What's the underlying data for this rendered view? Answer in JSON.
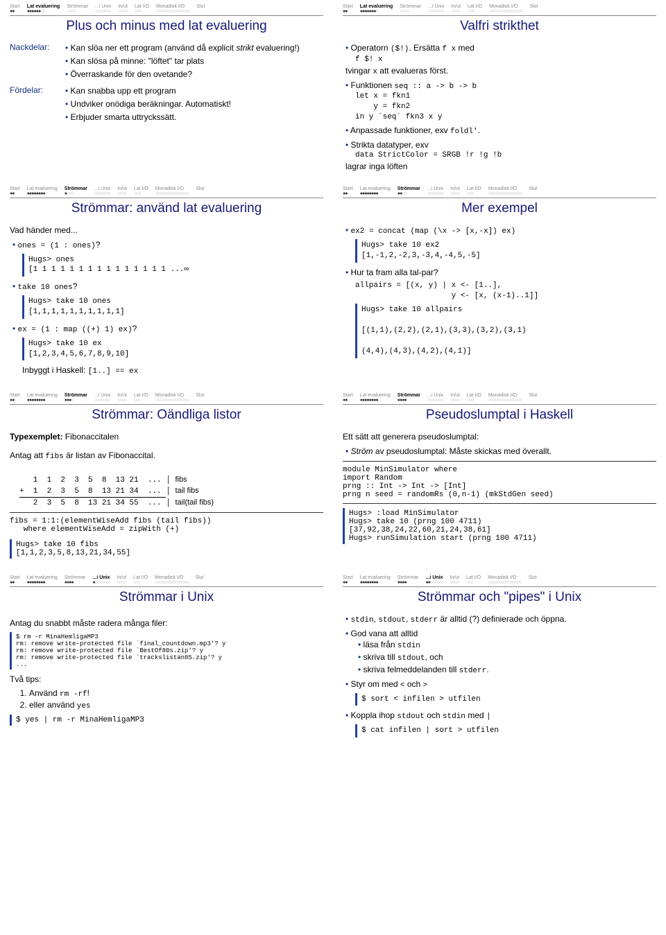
{
  "nav": {
    "items": [
      "Start",
      "Lat evaluering",
      "Strömmar",
      "...i Unix",
      "In/ut",
      "Lat I/O",
      "Monadisk I/O",
      "Slut"
    ],
    "counts": [
      2,
      8,
      4,
      7,
      4,
      3,
      15,
      0
    ]
  },
  "slides": [
    {
      "active": 1,
      "progress": 5,
      "title": "Plus och minus med lat evaluering",
      "body": "s1"
    },
    {
      "active": 1,
      "progress": 6,
      "title": "Valfri strikthet",
      "body": "s2"
    },
    {
      "active": 2,
      "progress": 0,
      "title": "Strömmar: använd lat evaluering",
      "body": "s3"
    },
    {
      "active": 2,
      "progress": 1,
      "title": "Mer exempel",
      "body": "s4"
    },
    {
      "active": 2,
      "progress": 2,
      "title": "Strömmar: Oändliga listor",
      "body": "s5"
    },
    {
      "active": 2,
      "progress": 3,
      "title": "Pseudoslumptal i Haskell",
      "body": "s6"
    },
    {
      "active": 3,
      "progress": 0,
      "title": "Strömmar i Unix",
      "body": "s7"
    },
    {
      "active": 3,
      "progress": 1,
      "title": "Strömmar och \"pipes\" i Unix",
      "body": "s8"
    }
  ],
  "s1": {
    "nackdelar_label": "Nackdelar:",
    "fordelar_label": "Fördelar:",
    "n1a": "Kan slöa ner ett program (använd då explicit ",
    "n1b": "strikt",
    "n1c": " evaluering!)",
    "n2": "Kan slösa på minne: \"löftet\" tar plats",
    "n3": "Överraskande för den ovetande?",
    "f1": "Kan snabba upp ett program",
    "f2": "Undviker onödiga beräkningar. Automatiskt!",
    "f3": "Erbjuder smarta uttryckssätt."
  },
  "s2": {
    "b1a": "Operatorn ",
    "b1b": "($!)",
    "b1c": ". Ersätta ",
    "b1d": "f x",
    "b1e": " med",
    "c1": "f $! x",
    "b1f": "tvingar ",
    "b1g": "x",
    "b1h": " att evalueras först.",
    "b2a": "Funktionen ",
    "b2b": "seq :: a -> b -> b",
    "c2": "let x = fkn1\n    y = fkn2\nin y `seq` fkn3 x y",
    "b3a": "Anpassade funktioner, exv ",
    "b3b": "foldl'",
    "b4": "Strikta datatyper, exv",
    "c3": "data StrictColor = SRGB !r !g !b",
    "b4b": "lagrar inga löften"
  },
  "s3": {
    "intro": "Vad händer med...",
    "q1": "ones = (1 : ones)",
    "qm": "?",
    "c1": "Hugs> ones\n[1 1 1 1 1 1 1 1 1 1 1 1 1 1 1 ...∞",
    "q2": "take 10 ones",
    "c2": "Hugs> take 10 ones\n[1,1,1,1,1,1,1,1,1,1]",
    "q3": "ex = (1 : map ((+) 1) ex)",
    "c3": "Hugs> take 10 ex\n[1,2,3,4,5,6,7,8,9,10]",
    "tail_a": "Inbyggt i Haskell: ",
    "tail_b": "[1..] == ex"
  },
  "s4": {
    "b1": "ex2 = concat (map (\\x -> [x,-x]) ex)",
    "c1": "Hugs> take 10 ex2\n[1,-1,2,-2,3,-3,4,-4,5,-5]",
    "b2": "Hur ta fram alla tal-par?",
    "c2": "allpairs = [(x, y) | x <- [1..],\n                     y <- [x, (x-1)..1]]",
    "c3": "Hugs> take 10 allpairs\n\n[(1,1),(2,2),(2,1),(3,3),(3,2),(3,1)\n\n(4,4),(4,3),(4,2),(4,1)]"
  },
  "s5": {
    "h_a": "Typexemplet:",
    "h_b": " Fibonaccitalen",
    "p1a": "Antag att ",
    "p1b": "fibs",
    "p1c": " är listan av Fibonaccital.",
    "r1": "   1  1  2  3  5  8  13 21  ... ",
    "r1l": "fibs",
    "r2": "+  1  2  3  5  8  13 21 34  ... ",
    "r2l": "tail fibs",
    "r3": "   2  3  5  8  13 21 34 55  ... ",
    "r3l": "tail(tail fibs)",
    "c1": "fibs = 1:1:(elementWiseAdd fibs (tail fibs))\n   where elementWiseAdd = zipWith (+)",
    "c2": "Hugs> take 10 fibs\n[1,1,2,3,5,8,13,21,34,55]"
  },
  "s6": {
    "p1": "Ett sätt att generera pseudoslumptal:",
    "b1a": "Ström",
    "b1b": " av pseudoslumptal: Måste skickas med överallt.",
    "c1": "module MinSimulator where\nimport Random\nprng :: Int -> Int -> [Int]\nprng n seed = randomRs (0,n-1) (mkStdGen seed)",
    "c2": "Hugs> :load MinSimulator\nHugs> take 10 (prng 100 4711)\n[37,92,38,24,22,60,21,24,38,61]\nHugs> runSimulation start (prng 100 4711)"
  },
  "s7": {
    "p1": "Antag du snabbt måste radera många filer:",
    "c1": "$ rm -r MinaHemligaMP3\nrm: remove write-protected file `final_countdown.mp3'? y\nrm: remove write-protected file `BestOf80s.zip'? y\nrm: remove write-protected file `trackslistan85.zip'? y\n...",
    "p2": "Två tips:",
    "t1a": "Använd ",
    "t1b": "rm -rf",
    "t1c": "!",
    "t2a": "eller använd ",
    "t2b": "yes",
    "c2": "$ yes | rm -r MinaHemligaMP3"
  },
  "s8": {
    "b1a": "stdin",
    "b1b": ", ",
    "b1c": "stdout",
    "b1d": ", ",
    "b1e": "stderr",
    "b1f": " är alltid (?) definierade och öppna.",
    "b2": "God vana att alltid",
    "s2a_a": "läsa från ",
    "s2a_b": "stdin",
    "s2b_a": "skriva till ",
    "s2b_b": "stdout",
    "s2b_c": ", och",
    "s2c_a": "skriva felmeddelanden till ",
    "s2c_b": "stderr",
    "s2c_c": ".",
    "b3a": "Styr om med ",
    "b3b": "<",
    "b3c": " och ",
    "b3d": ">",
    "c3": "$ sort < infilen > utfilen",
    "b4a": "Koppla ihop ",
    "b4b": "stdout",
    "b4c": " och ",
    "b4d": "stdin",
    "b4e": " med ",
    "b4f": "|",
    "c4": "$ cat infilen | sort > utfilen"
  }
}
